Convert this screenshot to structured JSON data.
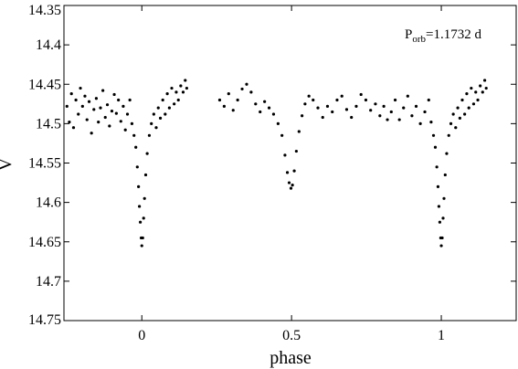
{
  "chart_data": {
    "type": "scatter",
    "title": "",
    "xlabel": "phase",
    "ylabel": "V",
    "xlim": [
      -0.26,
      1.25
    ],
    "ylim": [
      14.35,
      14.75
    ],
    "y_inverted": true,
    "x_ticks": [
      {
        "value": 0,
        "label": "0"
      },
      {
        "value": 0.5,
        "label": "0.5"
      },
      {
        "value": 1,
        "label": "1"
      }
    ],
    "y_ticks": [
      {
        "value": 14.35,
        "label": "14.35"
      },
      {
        "value": 14.4,
        "label": "14.4"
      },
      {
        "value": 14.45,
        "label": "14.45"
      },
      {
        "value": 14.5,
        "label": "14.5"
      },
      {
        "value": 14.55,
        "label": "14.55"
      },
      {
        "value": 14.6,
        "label": "14.6"
      },
      {
        "value": 14.65,
        "label": "14.65"
      },
      {
        "value": 14.7,
        "label": "14.7"
      },
      {
        "value": 14.75,
        "label": "14.75"
      }
    ],
    "annotation": {
      "symbol": "P",
      "subscript": "orb",
      "text": "=1.1732 d"
    },
    "grid": false,
    "legend": "none",
    "marker_color": "#000000",
    "series": [
      {
        "points": [
          [
            -0.25,
            14.478
          ],
          [
            -0.242,
            14.498
          ],
          [
            -0.235,
            14.462
          ],
          [
            -0.228,
            14.505
          ],
          [
            -0.22,
            14.47
          ],
          [
            -0.212,
            14.488
          ],
          [
            -0.205,
            14.455
          ],
          [
            -0.198,
            14.478
          ],
          [
            -0.19,
            14.465
          ],
          [
            -0.183,
            14.495
          ],
          [
            -0.176,
            14.472
          ],
          [
            -0.168,
            14.512
          ],
          [
            -0.16,
            14.482
          ],
          [
            -0.152,
            14.468
          ],
          [
            -0.145,
            14.498
          ],
          [
            -0.138,
            14.48
          ],
          [
            -0.13,
            14.458
          ],
          [
            -0.122,
            14.492
          ],
          [
            -0.115,
            14.476
          ],
          [
            -0.108,
            14.503
          ],
          [
            -0.1,
            14.484
          ],
          [
            -0.092,
            14.463
          ],
          [
            -0.085,
            14.487
          ],
          [
            -0.078,
            14.47
          ],
          [
            -0.07,
            14.497
          ],
          [
            -0.062,
            14.478
          ],
          [
            -0.055,
            14.508
          ],
          [
            -0.048,
            14.488
          ],
          [
            -0.04,
            14.47
          ],
          [
            -0.033,
            14.5
          ],
          [
            -0.026,
            14.515
          ],
          [
            -0.02,
            14.53
          ],
          [
            -0.015,
            14.555
          ],
          [
            -0.011,
            14.58
          ],
          [
            -0.008,
            14.605
          ],
          [
            -0.005,
            14.625
          ],
          [
            -0.002,
            14.645
          ],
          [
            0.0,
            14.655
          ],
          [
            0.003,
            14.645
          ],
          [
            0.006,
            14.62
          ],
          [
            0.009,
            14.595
          ],
          [
            0.013,
            14.565
          ],
          [
            0.018,
            14.538
          ],
          [
            0.025,
            14.515
          ],
          [
            0.032,
            14.5
          ],
          [
            0.04,
            14.488
          ],
          [
            0.048,
            14.505
          ],
          [
            0.055,
            14.48
          ],
          [
            0.062,
            14.493
          ],
          [
            0.07,
            14.47
          ],
          [
            0.078,
            14.488
          ],
          [
            0.085,
            14.462
          ],
          [
            0.092,
            14.48
          ],
          [
            0.1,
            14.455
          ],
          [
            0.108,
            14.475
          ],
          [
            0.115,
            14.46
          ],
          [
            0.122,
            14.47
          ],
          [
            0.13,
            14.452
          ],
          [
            0.138,
            14.46
          ],
          [
            0.145,
            14.445
          ],
          [
            0.15,
            14.455
          ],
          [
            0.26,
            14.47
          ],
          [
            0.275,
            14.478
          ],
          [
            0.29,
            14.462
          ],
          [
            0.305,
            14.483
          ],
          [
            0.32,
            14.47
          ],
          [
            0.335,
            14.456
          ],
          [
            0.35,
            14.45
          ],
          [
            0.365,
            14.46
          ],
          [
            0.38,
            14.475
          ],
          [
            0.395,
            14.485
          ],
          [
            0.41,
            14.472
          ],
          [
            0.425,
            14.48
          ],
          [
            0.44,
            14.488
          ],
          [
            0.455,
            14.5
          ],
          [
            0.468,
            14.515
          ],
          [
            0.478,
            14.54
          ],
          [
            0.486,
            14.562
          ],
          [
            0.492,
            14.575
          ],
          [
            0.498,
            14.582
          ],
          [
            0.503,
            14.578
          ],
          [
            0.509,
            14.56
          ],
          [
            0.516,
            14.535
          ],
          [
            0.525,
            14.51
          ],
          [
            0.535,
            14.49
          ],
          [
            0.545,
            14.475
          ],
          [
            0.558,
            14.465
          ],
          [
            0.572,
            14.47
          ],
          [
            0.588,
            14.48
          ],
          [
            0.604,
            14.492
          ],
          [
            0.62,
            14.478
          ],
          [
            0.636,
            14.485
          ],
          [
            0.652,
            14.47
          ],
          [
            0.668,
            14.465
          ],
          [
            0.684,
            14.482
          ],
          [
            0.7,
            14.492
          ],
          [
            0.716,
            14.478
          ],
          [
            0.732,
            14.463
          ],
          [
            0.748,
            14.47
          ],
          [
            0.764,
            14.483
          ],
          [
            0.78,
            14.475
          ],
          [
            0.795,
            14.49
          ],
          [
            0.808,
            14.478
          ],
          [
            0.82,
            14.495
          ],
          [
            0.833,
            14.485
          ],
          [
            0.846,
            14.47
          ],
          [
            0.86,
            14.495
          ],
          [
            0.874,
            14.48
          ],
          [
            0.888,
            14.465
          ],
          [
            0.902,
            14.49
          ],
          [
            0.916,
            14.478
          ],
          [
            0.93,
            14.5
          ],
          [
            0.945,
            14.485
          ],
          [
            0.958,
            14.47
          ],
          [
            0.966,
            14.498
          ],
          [
            0.974,
            14.515
          ],
          [
            0.98,
            14.53
          ],
          [
            0.985,
            14.555
          ],
          [
            0.989,
            14.58
          ],
          [
            0.992,
            14.605
          ],
          [
            0.995,
            14.625
          ],
          [
            0.998,
            14.645
          ],
          [
            1.0,
            14.655
          ],
          [
            1.003,
            14.645
          ],
          [
            1.006,
            14.62
          ],
          [
            1.009,
            14.595
          ],
          [
            1.013,
            14.565
          ],
          [
            1.018,
            14.538
          ],
          [
            1.025,
            14.515
          ],
          [
            1.032,
            14.5
          ],
          [
            1.04,
            14.488
          ],
          [
            1.048,
            14.505
          ],
          [
            1.055,
            14.48
          ],
          [
            1.062,
            14.493
          ],
          [
            1.07,
            14.47
          ],
          [
            1.078,
            14.488
          ],
          [
            1.085,
            14.462
          ],
          [
            1.092,
            14.48
          ],
          [
            1.1,
            14.455
          ],
          [
            1.108,
            14.475
          ],
          [
            1.115,
            14.46
          ],
          [
            1.122,
            14.47
          ],
          [
            1.13,
            14.452
          ],
          [
            1.138,
            14.46
          ],
          [
            1.145,
            14.445
          ],
          [
            1.15,
            14.455
          ]
        ]
      }
    ]
  }
}
